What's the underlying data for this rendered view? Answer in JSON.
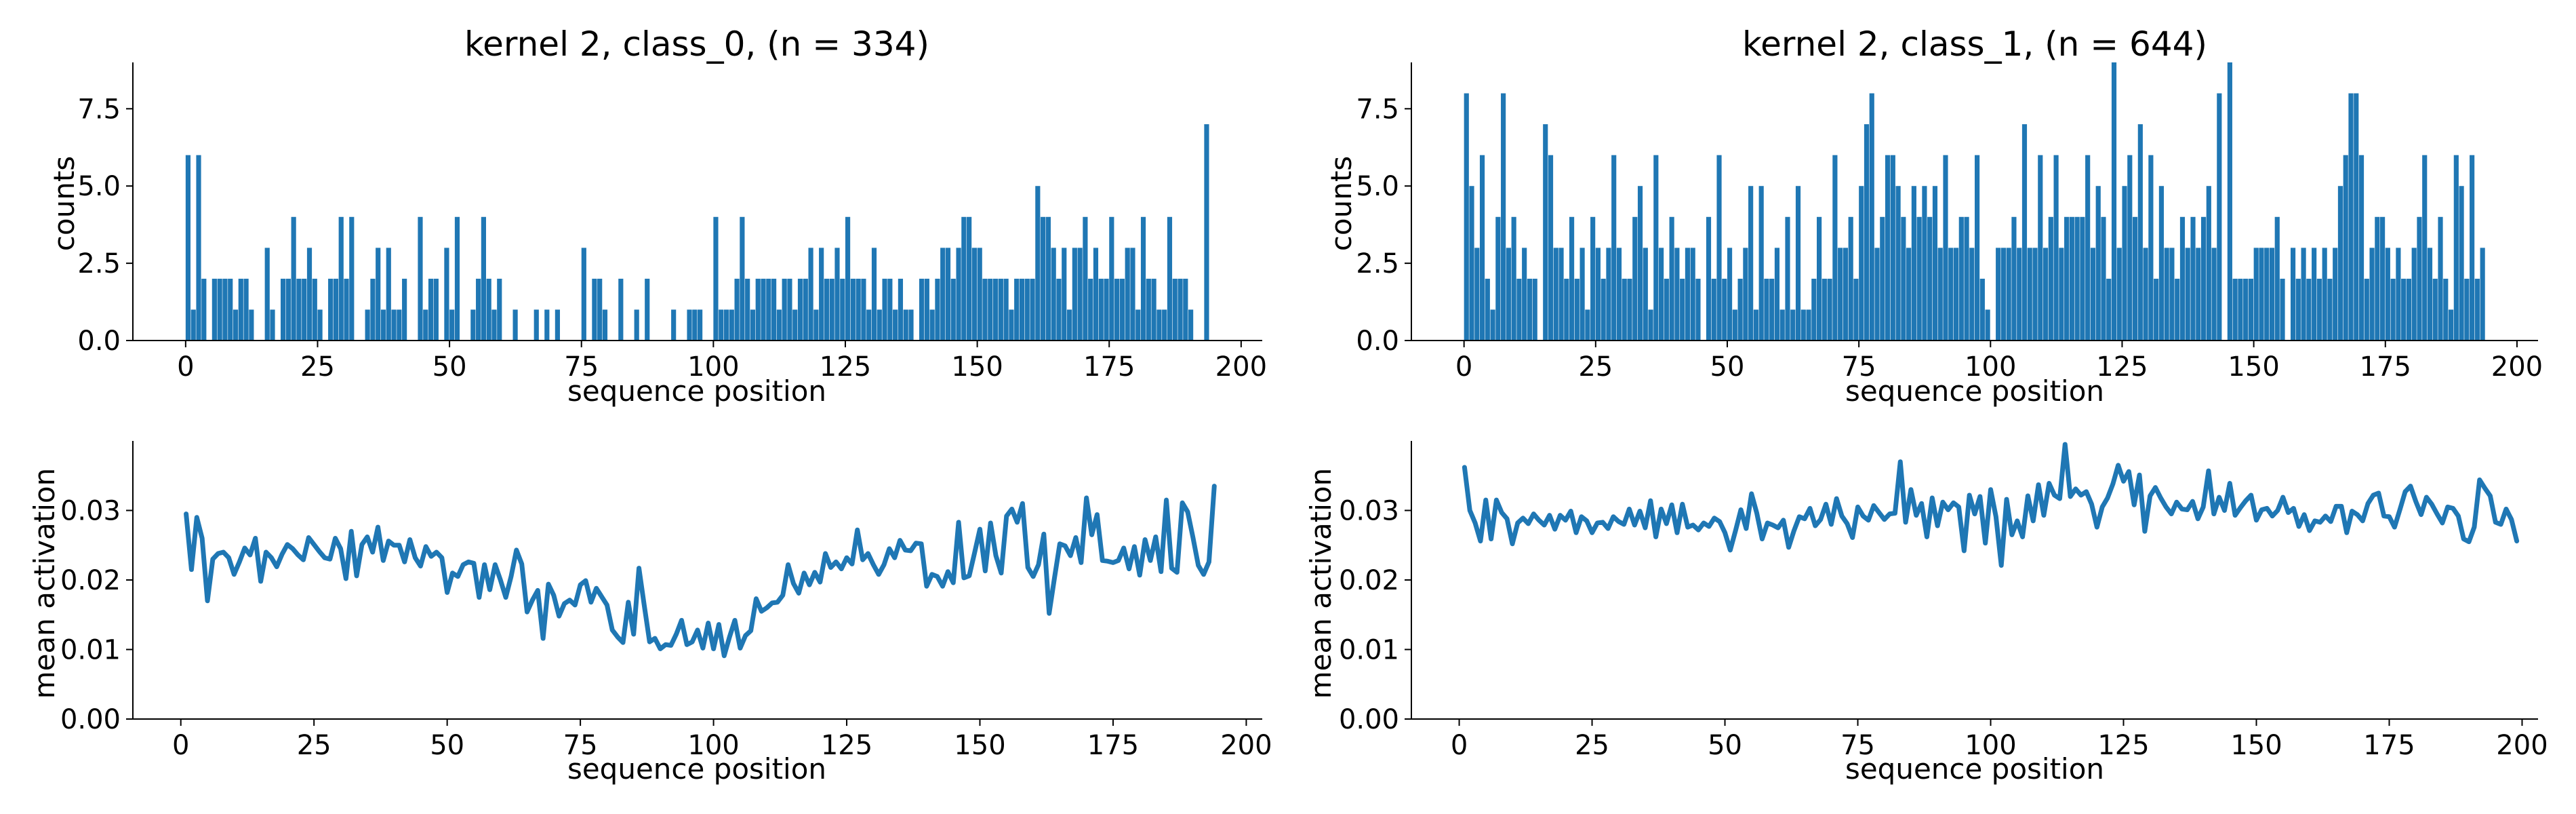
{
  "figure": {
    "background": "#ffffff",
    "bar_color": "#1f77b4",
    "line_color": "#1f77b4"
  },
  "chart_data": [
    {
      "type": "bar",
      "title": "kernel 2, class_0, (n = 334)",
      "xlabel": "sequence position",
      "ylabel": "counts",
      "xlim": [
        -10,
        204
      ],
      "ylim": [
        0,
        9
      ],
      "xticks": [
        0,
        25,
        50,
        75,
        100,
        125,
        150,
        175,
        200
      ],
      "yticks": [
        0.0,
        2.5,
        5.0,
        7.5
      ],
      "ytick_labels": [
        "0.0",
        "2.5",
        "5.0",
        "7.5"
      ],
      "grid": false,
      "x": [
        0,
        1,
        2,
        3,
        4,
        5,
        6,
        7,
        8,
        9,
        10,
        11,
        12,
        13,
        14,
        15,
        16,
        17,
        18,
        19,
        20,
        21,
        22,
        23,
        24,
        25,
        26,
        27,
        28,
        29,
        30,
        31,
        32,
        33,
        34,
        35,
        36,
        37,
        38,
        39,
        40,
        41,
        42,
        43,
        44,
        45,
        46,
        47,
        48,
        49,
        50,
        51,
        52,
        53,
        54,
        55,
        56,
        57,
        58,
        59,
        60,
        61,
        62,
        63,
        64,
        65,
        66,
        67,
        68,
        69,
        70,
        71,
        72,
        73,
        74,
        75,
        76,
        77,
        78,
        79,
        80,
        81,
        82,
        83,
        84,
        85,
        86,
        87,
        88,
        89,
        90,
        91,
        92,
        93,
        94,
        95,
        96,
        97,
        98,
        99,
        100,
        101,
        102,
        103,
        104,
        105,
        106,
        107,
        108,
        109,
        110,
        111,
        112,
        113,
        114,
        115,
        116,
        117,
        118,
        119,
        120,
        121,
        122,
        123,
        124,
        125,
        126,
        127,
        128,
        129,
        130,
        131,
        132,
        133,
        134,
        135,
        136,
        137,
        138,
        139,
        140,
        141,
        142,
        143,
        144,
        145,
        146,
        147,
        148,
        149,
        150,
        151,
        152,
        153,
        154,
        155,
        156,
        157,
        158,
        159,
        160,
        161,
        162,
        163,
        164,
        165,
        166,
        167,
        168,
        169,
        170,
        171,
        172,
        173,
        174,
        175,
        176,
        177,
        178,
        179,
        180,
        181,
        182,
        183,
        184,
        185,
        186,
        187,
        188,
        189,
        190,
        191,
        192,
        193
      ],
      "values": [
        6,
        1,
        6,
        2,
        0,
        2,
        2,
        2,
        2,
        1,
        2,
        2,
        1,
        0,
        0,
        3,
        1,
        0,
        2,
        2,
        4,
        2,
        2,
        3,
        2,
        1,
        0,
        2,
        2,
        4,
        2,
        4,
        0,
        0,
        1,
        2,
        3,
        1,
        3,
        1,
        1,
        2,
        0,
        0,
        4,
        1,
        2,
        2,
        0,
        3,
        1,
        4,
        0,
        0,
        1,
        2,
        4,
        2,
        1,
        2,
        0,
        0,
        1,
        0,
        0,
        0,
        1,
        0,
        1,
        0,
        1,
        0,
        0,
        0,
        0,
        3,
        0,
        2,
        2,
        1,
        0,
        0,
        2,
        0,
        0,
        1,
        0,
        2,
        0,
        0,
        0,
        0,
        1,
        0,
        0,
        1,
        1,
        1,
        0,
        0,
        4,
        1,
        1,
        1,
        2,
        4,
        2,
        1,
        2,
        2,
        2,
        2,
        1,
        2,
        2,
        1,
        2,
        2,
        3,
        1,
        3,
        2,
        2,
        3,
        2,
        4,
        2,
        2,
        2,
        1,
        3,
        1,
        2,
        2,
        1,
        2,
        1,
        1,
        0,
        2,
        2,
        1,
        2,
        3,
        3,
        2,
        3,
        4,
        4,
        3,
        3,
        2,
        2,
        2,
        2,
        2,
        1,
        2,
        2,
        2,
        2,
        5,
        4,
        4,
        3,
        2,
        3,
        1,
        3,
        3,
        4,
        2,
        3,
        2,
        2,
        4,
        2,
        2,
        3,
        3,
        1,
        4,
        2,
        2,
        1,
        1,
        4,
        2,
        2,
        2,
        1,
        0,
        0,
        7
      ]
    },
    {
      "type": "bar",
      "title": "kernel 2, class_1, (n = 644)",
      "xlabel": "sequence position",
      "ylabel": "counts",
      "xlim": [
        -10,
        204
      ],
      "ylim": [
        0,
        9
      ],
      "xticks": [
        0,
        25,
        50,
        75,
        100,
        125,
        150,
        175,
        200
      ],
      "yticks": [
        0.0,
        2.5,
        5.0,
        7.5
      ],
      "ytick_labels": [
        "0.0",
        "2.5",
        "5.0",
        "7.5"
      ],
      "grid": false,
      "x": [
        0,
        1,
        2,
        3,
        4,
        5,
        6,
        7,
        8,
        9,
        10,
        11,
        12,
        13,
        14,
        15,
        16,
        17,
        18,
        19,
        20,
        21,
        22,
        23,
        24,
        25,
        26,
        27,
        28,
        29,
        30,
        31,
        32,
        33,
        34,
        35,
        36,
        37,
        38,
        39,
        40,
        41,
        42,
        43,
        44,
        45,
        46,
        47,
        48,
        49,
        50,
        51,
        52,
        53,
        54,
        55,
        56,
        57,
        58,
        59,
        60,
        61,
        62,
        63,
        64,
        65,
        66,
        67,
        68,
        69,
        70,
        71,
        72,
        73,
        74,
        75,
        76,
        77,
        78,
        79,
        80,
        81,
        82,
        83,
        84,
        85,
        86,
        87,
        88,
        89,
        90,
        91,
        92,
        93,
        94,
        95,
        96,
        97,
        98,
        99,
        100,
        101,
        102,
        103,
        104,
        105,
        106,
        107,
        108,
        109,
        110,
        111,
        112,
        113,
        114,
        115,
        116,
        117,
        118,
        119,
        120,
        121,
        122,
        123,
        124,
        125,
        126,
        127,
        128,
        129,
        130,
        131,
        132,
        133,
        134,
        135,
        136,
        137,
        138,
        139,
        140,
        141,
        142,
        143,
        144,
        145,
        146,
        147,
        148,
        149,
        150,
        151,
        152,
        153,
        154,
        155,
        156,
        157,
        158,
        159,
        160,
        161,
        162,
        163,
        164,
        165,
        166,
        167,
        168,
        169,
        170,
        171,
        172,
        173,
        174,
        175,
        176,
        177,
        178,
        179,
        180,
        181,
        182,
        183,
        184,
        185,
        186,
        187,
        188,
        189,
        190,
        191,
        192,
        193
      ],
      "values": [
        8,
        5,
        3,
        6,
        2,
        1,
        4,
        8,
        3,
        4,
        2,
        3,
        2,
        2,
        0,
        7,
        6,
        3,
        3,
        2,
        4,
        2,
        3,
        1,
        4,
        3,
        2,
        3,
        6,
        3,
        2,
        2,
        4,
        5,
        3,
        1,
        6,
        3,
        2,
        4,
        3,
        2,
        3,
        3,
        2,
        0,
        4,
        2,
        6,
        2,
        3,
        1,
        2,
        3,
        5,
        1,
        5,
        2,
        2,
        3,
        1,
        4,
        1,
        5,
        1,
        1,
        2,
        4,
        2,
        2,
        6,
        3,
        3,
        4,
        2,
        5,
        7,
        8,
        3,
        4,
        6,
        6,
        5,
        4,
        3,
        5,
        4,
        5,
        4,
        5,
        3,
        6,
        3,
        3,
        4,
        4,
        3,
        6,
        2,
        1,
        0,
        3,
        3,
        3,
        4,
        3,
        7,
        3,
        3,
        6,
        3,
        4,
        6,
        3,
        4,
        4,
        4,
        4,
        6,
        3,
        5,
        4,
        2,
        9,
        3,
        5,
        6,
        4,
        7,
        3,
        6,
        2,
        5,
        3,
        3,
        2,
        4,
        3,
        4,
        3,
        4,
        5,
        3,
        8,
        0,
        9,
        2,
        2,
        2,
        2,
        3,
        3,
        3,
        3,
        4,
        2,
        0,
        3,
        2,
        3,
        2,
        3,
        2,
        3,
        2,
        3,
        5,
        6,
        8,
        8,
        6,
        2,
        3,
        4,
        4,
        3,
        2,
        3,
        2,
        2,
        3,
        4,
        6,
        3,
        2,
        4,
        2,
        1,
        6,
        5,
        2,
        6,
        2,
        3
      ]
    },
    {
      "type": "line",
      "title": "",
      "xlabel": "sequence position",
      "ylabel": "mean activation",
      "xlim": [
        -9,
        203
      ],
      "ylim": [
        0,
        0.04
      ],
      "xticks": [
        0,
        25,
        50,
        75,
        100,
        125,
        150,
        175,
        200
      ],
      "yticks": [
        0.0,
        0.01,
        0.02,
        0.03
      ],
      "ytick_labels": [
        "0.00",
        "0.01",
        "0.02",
        "0.03"
      ],
      "grid": false,
      "x_start": 1,
      "values": [
        0.0295,
        0.0215,
        0.029,
        0.026,
        0.017,
        0.023,
        0.0238,
        0.024,
        0.0232,
        0.0208,
        0.0226,
        0.0246,
        0.0236,
        0.026,
        0.0198,
        0.024,
        0.0232,
        0.0219,
        0.0237,
        0.0251,
        0.0245,
        0.0236,
        0.0229,
        0.0261,
        0.0251,
        0.0241,
        0.0232,
        0.023,
        0.026,
        0.0245,
        0.0202,
        0.027,
        0.0206,
        0.0251,
        0.0262,
        0.024,
        0.0276,
        0.0228,
        0.0256,
        0.025,
        0.025,
        0.0226,
        0.0258,
        0.0232,
        0.022,
        0.0248,
        0.0234,
        0.024,
        0.0232,
        0.0182,
        0.021,
        0.0205,
        0.0222,
        0.0226,
        0.0224,
        0.0175,
        0.0222,
        0.0186,
        0.0222,
        0.02,
        0.0175,
        0.0205,
        0.0243,
        0.0223,
        0.0154,
        0.0171,
        0.0185,
        0.0116,
        0.0194,
        0.0178,
        0.0148,
        0.0166,
        0.0171,
        0.0164,
        0.0193,
        0.0199,
        0.0168,
        0.0188,
        0.0176,
        0.0164,
        0.0128,
        0.0118,
        0.011,
        0.0168,
        0.0122,
        0.0217,
        0.0163,
        0.0111,
        0.0116,
        0.0101,
        0.0107,
        0.0106,
        0.0122,
        0.0142,
        0.0107,
        0.0111,
        0.0128,
        0.0102,
        0.0138,
        0.0101,
        0.0136,
        0.0091,
        0.0118,
        0.0142,
        0.0102,
        0.012,
        0.0127,
        0.0173,
        0.0155,
        0.016,
        0.0167,
        0.0168,
        0.0178,
        0.0222,
        0.0195,
        0.0181,
        0.021,
        0.0193,
        0.0211,
        0.0197,
        0.0238,
        0.0218,
        0.0226,
        0.0216,
        0.0232,
        0.0223,
        0.0272,
        0.0229,
        0.0238,
        0.0222,
        0.0208,
        0.0222,
        0.0245,
        0.0232,
        0.0257,
        0.0243,
        0.0242,
        0.0253,
        0.0252,
        0.0191,
        0.0208,
        0.0205,
        0.0191,
        0.0212,
        0.0196,
        0.0283,
        0.0203,
        0.0206,
        0.0239,
        0.0273,
        0.0213,
        0.0282,
        0.0235,
        0.021,
        0.0292,
        0.0302,
        0.0283,
        0.031,
        0.0218,
        0.0205,
        0.0222,
        0.0266,
        0.0152,
        0.0203,
        0.0252,
        0.0249,
        0.0235,
        0.0261,
        0.0225,
        0.0318,
        0.0265,
        0.0294,
        0.0228,
        0.0227,
        0.0225,
        0.0228,
        0.0246,
        0.0216,
        0.0248,
        0.0207,
        0.0258,
        0.0228,
        0.0262,
        0.0212,
        0.0315,
        0.0217,
        0.0211,
        0.0311,
        0.0298,
        0.0261,
        0.0221,
        0.0208,
        0.0226,
        0.0335
      ]
    },
    {
      "type": "line",
      "title": "",
      "xlabel": "sequence position",
      "ylabel": "mean activation",
      "xlim": [
        -9,
        203
      ],
      "ylim": [
        0,
        0.04
      ],
      "xticks": [
        0,
        25,
        50,
        75,
        100,
        125,
        150,
        175,
        200
      ],
      "yticks": [
        0.0,
        0.01,
        0.02,
        0.03
      ],
      "ytick_labels": [
        "0.00",
        "0.01",
        "0.02",
        "0.03"
      ],
      "grid": false,
      "x_start": 1,
      "values": [
        0.0362,
        0.03,
        0.0282,
        0.0256,
        0.0315,
        0.0259,
        0.0315,
        0.0297,
        0.0288,
        0.0252,
        0.0282,
        0.0289,
        0.0281,
        0.0295,
        0.0286,
        0.0279,
        0.0293,
        0.0273,
        0.0293,
        0.0286,
        0.0299,
        0.0268,
        0.0291,
        0.0285,
        0.0268,
        0.0282,
        0.0283,
        0.0274,
        0.0291,
        0.0284,
        0.028,
        0.0302,
        0.0279,
        0.0299,
        0.0275,
        0.0314,
        0.0262,
        0.0302,
        0.0281,
        0.0308,
        0.0268,
        0.0309,
        0.0276,
        0.0279,
        0.0272,
        0.0282,
        0.0277,
        0.0289,
        0.0284,
        0.0268,
        0.0243,
        0.0271,
        0.0301,
        0.0274,
        0.0324,
        0.0296,
        0.0259,
        0.0282,
        0.0279,
        0.0275,
        0.0286,
        0.0247,
        0.0271,
        0.0291,
        0.0288,
        0.0303,
        0.0278,
        0.0287,
        0.0309,
        0.028,
        0.0317,
        0.0292,
        0.0281,
        0.0261,
        0.0305,
        0.0292,
        0.0286,
        0.0307,
        0.0297,
        0.0287,
        0.0295,
        0.0296,
        0.037,
        0.0283,
        0.033,
        0.0293,
        0.031,
        0.0262,
        0.0318,
        0.0278,
        0.0312,
        0.0301,
        0.0311,
        0.0305,
        0.0242,
        0.0322,
        0.0295,
        0.032,
        0.0253,
        0.033,
        0.0291,
        0.0221,
        0.0316,
        0.0265,
        0.0285,
        0.0262,
        0.0321,
        0.0285,
        0.0337,
        0.0293,
        0.0339,
        0.0322,
        0.0317,
        0.0395,
        0.032,
        0.0331,
        0.0322,
        0.0327,
        0.0309,
        0.0276,
        0.0305,
        0.0318,
        0.0338,
        0.0365,
        0.0342,
        0.0356,
        0.0308,
        0.0351,
        0.027,
        0.0321,
        0.0333,
        0.0318,
        0.0305,
        0.0295,
        0.0312,
        0.0302,
        0.0301,
        0.0313,
        0.0288,
        0.0305,
        0.0357,
        0.0295,
        0.0319,
        0.03,
        0.0339,
        0.0293,
        0.0304,
        0.0314,
        0.0322,
        0.0286,
        0.0301,
        0.0303,
        0.0292,
        0.03,
        0.0319,
        0.0297,
        0.0303,
        0.0277,
        0.0294,
        0.0271,
        0.0285,
        0.0283,
        0.0292,
        0.0284,
        0.0306,
        0.0306,
        0.0268,
        0.0299,
        0.0294,
        0.0285,
        0.031,
        0.0322,
        0.0325,
        0.0292,
        0.0291,
        0.0276,
        0.0301,
        0.0327,
        0.0335,
        0.0313,
        0.0294,
        0.0319,
        0.0309,
        0.0295,
        0.0282,
        0.0305,
        0.0303,
        0.0292,
        0.0259,
        0.0255,
        0.0276,
        0.0344,
        0.0332,
        0.0321,
        0.0283,
        0.028,
        0.0302,
        0.0287,
        0.0256
      ]
    }
  ]
}
